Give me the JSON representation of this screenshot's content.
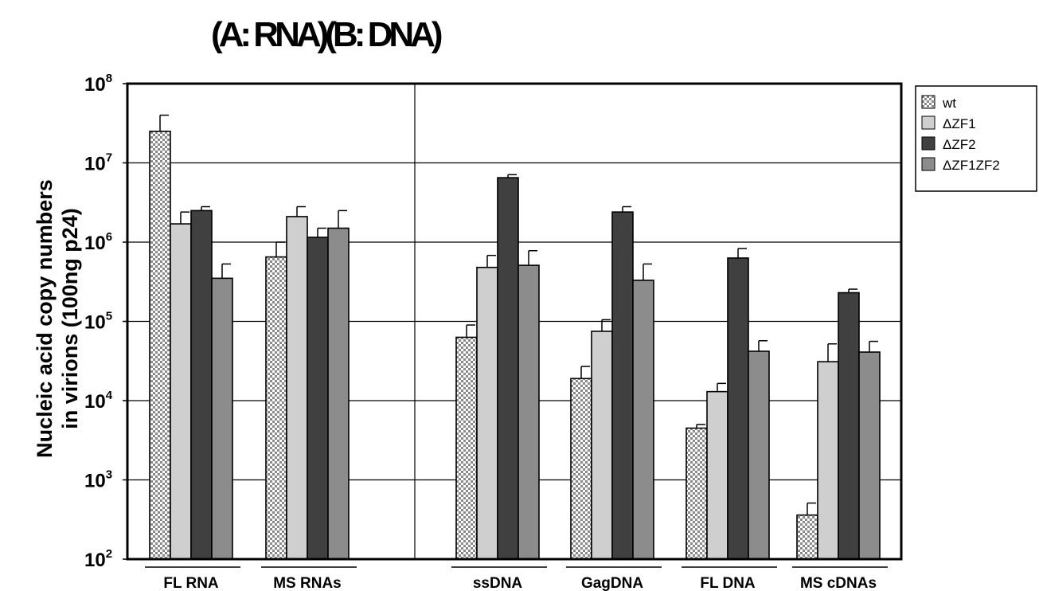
{
  "chart_data": {
    "type": "bar",
    "title": "(A: RNA)(B: DNA)",
    "ylabel_lines": [
      "Nucleic acid copy numbers",
      "in virions (100ng p24)"
    ],
    "xlabel": "",
    "yscale": "log",
    "ylim": [
      100,
      100000000
    ],
    "y_ticks": [
      {
        "base": "10",
        "exp": "2",
        "value": 100
      },
      {
        "base": "10",
        "exp": "3",
        "value": 1000
      },
      {
        "base": "10",
        "exp": "4",
        "value": 10000
      },
      {
        "base": "10",
        "exp": "5",
        "value": 100000
      },
      {
        "base": "10",
        "exp": "6",
        "value": 1000000
      },
      {
        "base": "10",
        "exp": "7",
        "value": 10000000
      },
      {
        "base": "10",
        "exp": "8",
        "value": 100000000
      }
    ],
    "grid": true,
    "legend_position": "top-right",
    "categories": [
      "FL RNA",
      "MS RNAs",
      "ssDNA",
      "GagDNA",
      "FL DNA",
      "MS cDNAs"
    ],
    "series": [
      {
        "name": "wt",
        "color": "#c8c8c8",
        "pattern": "checker",
        "values": [
          25000000,
          650000,
          63000,
          19000,
          4500,
          360
        ],
        "errors_upper": [
          40000000,
          1000000,
          90000,
          27000,
          5000,
          510
        ]
      },
      {
        "name": "ΔZF1",
        "color": "#cfcfcf",
        "pattern": "solid",
        "values": [
          1700000,
          2100000,
          480000,
          75000,
          13000,
          31000
        ],
        "errors_upper": [
          2400000,
          2800000,
          680000,
          105000,
          16500,
          52000
        ]
      },
      {
        "name": "ΔZF2",
        "color": "#404040",
        "pattern": "solid",
        "values": [
          2500000,
          1150000,
          6500000,
          2400000,
          630000,
          230000
        ],
        "errors_upper": [
          2800000,
          1500000,
          7100000,
          2800000,
          830000,
          255000
        ]
      },
      {
        "name": "ΔZF1ZF2",
        "color": "#8c8c8c",
        "pattern": "solid",
        "values": [
          350000,
          1500000,
          510000,
          330000,
          42000,
          41000
        ],
        "errors_upper": [
          530000,
          2500000,
          780000,
          530000,
          57000,
          56000
        ]
      }
    ]
  }
}
